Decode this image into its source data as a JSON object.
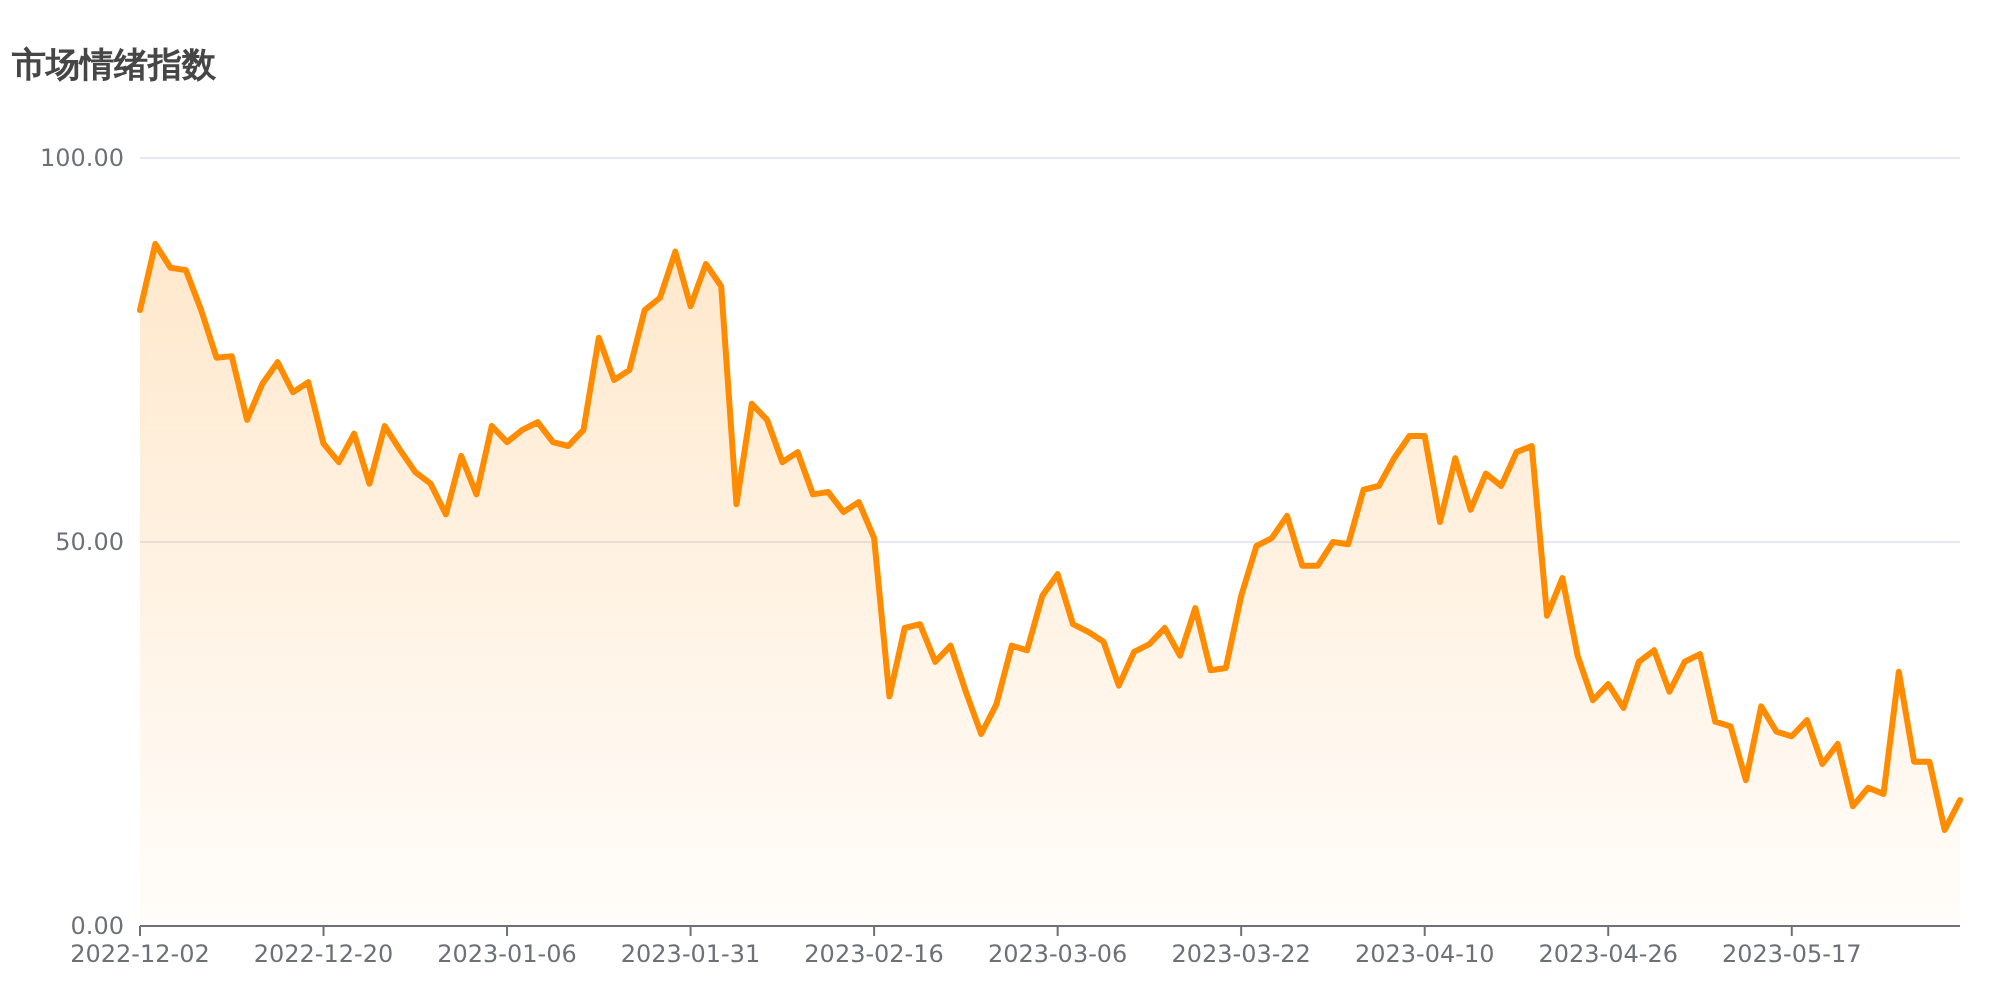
{
  "chart_data": {
    "type": "area",
    "title": "市场情绪指数",
    "categories": [
      "2022-12-02",
      null,
      null,
      null,
      null,
      null,
      null,
      null,
      null,
      null,
      null,
      null,
      "2022-12-20",
      null,
      null,
      null,
      null,
      null,
      null,
      null,
      null,
      null,
      null,
      null,
      "2023-01-06",
      null,
      null,
      null,
      null,
      null,
      null,
      null,
      null,
      null,
      null,
      null,
      "2023-01-31",
      null,
      null,
      null,
      null,
      null,
      null,
      null,
      null,
      null,
      null,
      null,
      "2023-02-16",
      null,
      null,
      null,
      null,
      null,
      null,
      null,
      null,
      null,
      null,
      null,
      "2023-03-06",
      null,
      null,
      null,
      null,
      null,
      null,
      null,
      null,
      null,
      null,
      null,
      "2023-03-22",
      null,
      null,
      null,
      null,
      null,
      null,
      null,
      null,
      null,
      null,
      null,
      "2023-04-10",
      null,
      null,
      null,
      null,
      null,
      null,
      null,
      null,
      null,
      null,
      null,
      "2023-04-26",
      null,
      null,
      null,
      null,
      null,
      null,
      null,
      null,
      null,
      null,
      null,
      "2023-05-17",
      null,
      null,
      null,
      null,
      null,
      null,
      null,
      null,
      null,
      null,
      null
    ],
    "series": [
      {
        "color": "#ff8c00",
        "values": [
          80.2,
          88.8,
          85.7,
          85.4,
          80.2,
          74.0,
          74.2,
          65.9,
          70.6,
          73.4,
          69.5,
          70.8,
          62.8,
          60.4,
          64.1,
          57.6,
          65.1,
          62.0,
          59.1,
          57.6,
          53.6,
          61.2,
          56.2,
          65.1,
          63.0,
          64.6,
          65.6,
          63.0,
          62.5,
          64.6,
          76.6,
          71.1,
          72.4,
          80.2,
          81.8,
          87.8,
          80.7,
          86.2,
          83.3,
          54.9,
          68.0,
          65.9,
          60.4,
          61.7,
          56.2,
          56.5,
          53.9,
          55.2,
          50.5,
          29.9,
          38.8,
          39.3,
          34.4,
          36.5,
          30.5,
          25.0,
          28.9,
          36.5,
          35.9,
          43.0,
          45.8,
          39.3,
          38.3,
          37.0,
          31.3,
          35.7,
          36.7,
          38.8,
          35.2,
          41.4,
          33.3,
          33.6,
          43.0,
          49.5,
          50.5,
          53.4,
          46.9,
          46.9,
          50.0,
          49.7,
          56.8,
          57.3,
          60.9,
          63.8,
          63.8,
          52.6,
          60.9,
          54.2,
          58.9,
          57.3,
          61.7,
          62.5,
          40.4,
          45.3,
          35.2,
          29.4,
          31.5,
          28.4,
          34.4,
          35.9,
          30.5,
          34.4,
          35.4,
          26.6,
          26.0,
          19.0,
          28.6,
          25.3,
          24.7,
          26.8,
          21.1,
          23.7,
          15.6,
          18.0,
          17.2,
          33.1,
          21.4,
          21.4,
          12.5,
          16.4
        ]
      }
    ],
    "ylim": [
      0,
      100
    ],
    "yticks": [
      {
        "value": 0,
        "label": "0.00"
      },
      {
        "value": 50,
        "label": "50.00"
      },
      {
        "value": 100,
        "label": "100.00"
      }
    ],
    "grid": "y"
  }
}
